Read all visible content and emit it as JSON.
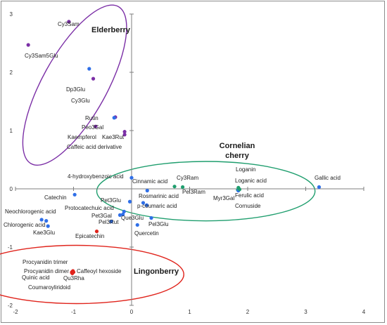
{
  "chart_data": {
    "type": "scatter",
    "title": "",
    "xlabel": "",
    "ylabel": "",
    "xlim": [
      -2,
      4
    ],
    "ylim": [
      -2,
      3
    ],
    "x_ticks": [
      "-2",
      "-1",
      "0",
      "1",
      "2",
      "3",
      "4"
    ],
    "y_ticks": [
      "3",
      "2",
      "1",
      "0",
      "-1",
      "-2"
    ],
    "grid": false,
    "colors": {
      "blue": "#2f6fe8",
      "purple": "#7b2fa6",
      "green": "#1f9e6e",
      "red": "#e0241c"
    },
    "groups": [
      {
        "name": "Elderberry",
        "color": "#7b2fa6",
        "ellipse": {
          "cx": -0.98,
          "cy": 1.78,
          "rx": 1.55,
          "ry": 0.55,
          "angle_deg": -61
        }
      },
      {
        "name": "Cornelian cherry",
        "color": "#1f9e6e",
        "ellipse": {
          "cx": 1.28,
          "cy": -0.04,
          "rx": 1.88,
          "ry": 0.51,
          "angle_deg": 0
        }
      },
      {
        "name": "Lingonberry",
        "color": "#e0241c",
        "ellipse": {
          "cx": -0.95,
          "cy": -1.47,
          "rx": 1.85,
          "ry": 0.5,
          "angle_deg": 0
        }
      }
    ],
    "points": [
      {
        "label": "Cy3Sam",
        "x": -1.08,
        "y": 2.87,
        "color": "purple"
      },
      {
        "label": "Cy3Sam5Glu",
        "x": -1.78,
        "y": 2.47,
        "color": "purple"
      },
      {
        "label": "Dp3Glu",
        "x": -0.73,
        "y": 2.06,
        "color": "blue"
      },
      {
        "label": "Cy3Glu",
        "x": -0.66,
        "y": 1.89,
        "color": "purple"
      },
      {
        "label": "Rutin",
        "x": -0.28,
        "y": 1.23,
        "color": "purple"
      },
      {
        "label": "Peo3Gal",
        "x": -0.3,
        "y": 1.22,
        "color": "blue"
      },
      {
        "label": "Kaempferol",
        "x": -0.62,
        "y": 1.07,
        "color": "purple"
      },
      {
        "label": "Kae3Rut",
        "x": -0.12,
        "y": 0.98,
        "color": "purple"
      },
      {
        "label": "Caffeic acid derivative",
        "x": -0.12,
        "y": 0.93,
        "color": "purple"
      },
      {
        "label": "4-hydroxybenzoic acid",
        "x": 0.0,
        "y": 0.19,
        "color": "blue"
      },
      {
        "label": "Cinnamic acid",
        "x": 0.27,
        "y": -0.03,
        "color": "blue"
      },
      {
        "label": "Cy3Ram",
        "x": 0.74,
        "y": 0.04,
        "color": "green"
      },
      {
        "label": "Pel3Ram",
        "x": 0.88,
        "y": 0.03,
        "color": "green"
      },
      {
        "label": "Loganin",
        "x": 1.83,
        "y": -0.02,
        "color": "green"
      },
      {
        "label": "Loganic acid",
        "x": 1.85,
        "y": 0.0,
        "color": "green"
      },
      {
        "label": "Myr3Gal",
        "x": 1.84,
        "y": -0.03,
        "color": "blue"
      },
      {
        "label": "Ferulic acid",
        "x": 1.86,
        "y": -0.01,
        "color": "green"
      },
      {
        "label": "Cornuside",
        "x": 1.84,
        "y": 0.02,
        "color": "green"
      },
      {
        "label": "Gallic acid",
        "x": 3.23,
        "y": 0.03,
        "color": "blue"
      },
      {
        "label": "Catechin",
        "x": -0.98,
        "y": -0.1,
        "color": "blue"
      },
      {
        "label": "Rosmarinic acid",
        "x": 0.2,
        "y": -0.24,
        "color": "blue"
      },
      {
        "label": "p-coumaric acid",
        "x": 0.26,
        "y": -0.28,
        "color": "blue"
      },
      {
        "label": "Pet3Glu",
        "x": -0.03,
        "y": -0.22,
        "color": "blue"
      },
      {
        "label": "Protocatechuic acid",
        "x": -0.13,
        "y": -0.39,
        "color": "blue"
      },
      {
        "label": "Pet3Gal",
        "x": -0.2,
        "y": -0.45,
        "color": "blue"
      },
      {
        "label": "Que3Glu",
        "x": -0.15,
        "y": -0.44,
        "color": "blue"
      },
      {
        "label": "Pel3Glu",
        "x": 0.34,
        "y": -0.5,
        "color": "blue"
      },
      {
        "label": "Pel3Rut",
        "x": -0.35,
        "y": -0.56,
        "color": "blue"
      },
      {
        "label": "Neochlorogenic acid",
        "x": -1.55,
        "y": -0.53,
        "color": "blue"
      },
      {
        "label": "Chlorogenic acid",
        "x": -1.47,
        "y": -0.55,
        "color": "blue"
      },
      {
        "label": "Kae3Glu",
        "x": -1.44,
        "y": -0.64,
        "color": "blue"
      },
      {
        "label": "Epicatechin",
        "x": -0.6,
        "y": -0.73,
        "color": "red"
      },
      {
        "label": "Quercetin",
        "x": 0.1,
        "y": -0.62,
        "color": "blue"
      },
      {
        "label": "Procyanidin trimer",
        "x": -1.03,
        "y": -1.43,
        "color": "red"
      },
      {
        "label": "Procyanidin dimer",
        "x": -1.02,
        "y": -1.42,
        "color": "red"
      },
      {
        "label": "Caffeoyl hexoside",
        "x": -1.01,
        "y": -1.41,
        "color": "red"
      },
      {
        "label": "Quinic acid",
        "x": -1.03,
        "y": -1.44,
        "color": "red"
      },
      {
        "label": "Qu3Rha",
        "x": -1.02,
        "y": -1.45,
        "color": "red"
      },
      {
        "label": "Coumaroyliridoid",
        "x": -1.0,
        "y": -1.43,
        "color": "red"
      }
    ]
  }
}
